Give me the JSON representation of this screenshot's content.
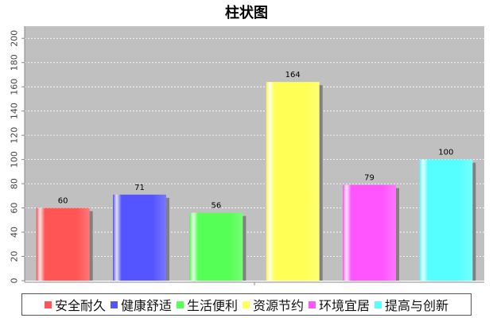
{
  "chart_data": {
    "type": "bar",
    "title": "柱状图",
    "xlabel": "",
    "ylabel": "",
    "categories": [
      "安全耐久",
      "健康舒适",
      "生活便利",
      "资源节约",
      "环境宜居",
      "提高与创新"
    ],
    "values": [
      60,
      71,
      56,
      164,
      79,
      100
    ],
    "colors": [
      "#ff5555",
      "#5555ff",
      "#55ff55",
      "#ffff55",
      "#ff55ff",
      "#55ffff"
    ],
    "ylim": [
      0,
      210
    ],
    "yticks": [
      0,
      20,
      40,
      60,
      80,
      100,
      120,
      140,
      160,
      180,
      200
    ],
    "grid": true,
    "legend_position": "bottom",
    "plot_background": "#c0c0c0"
  }
}
